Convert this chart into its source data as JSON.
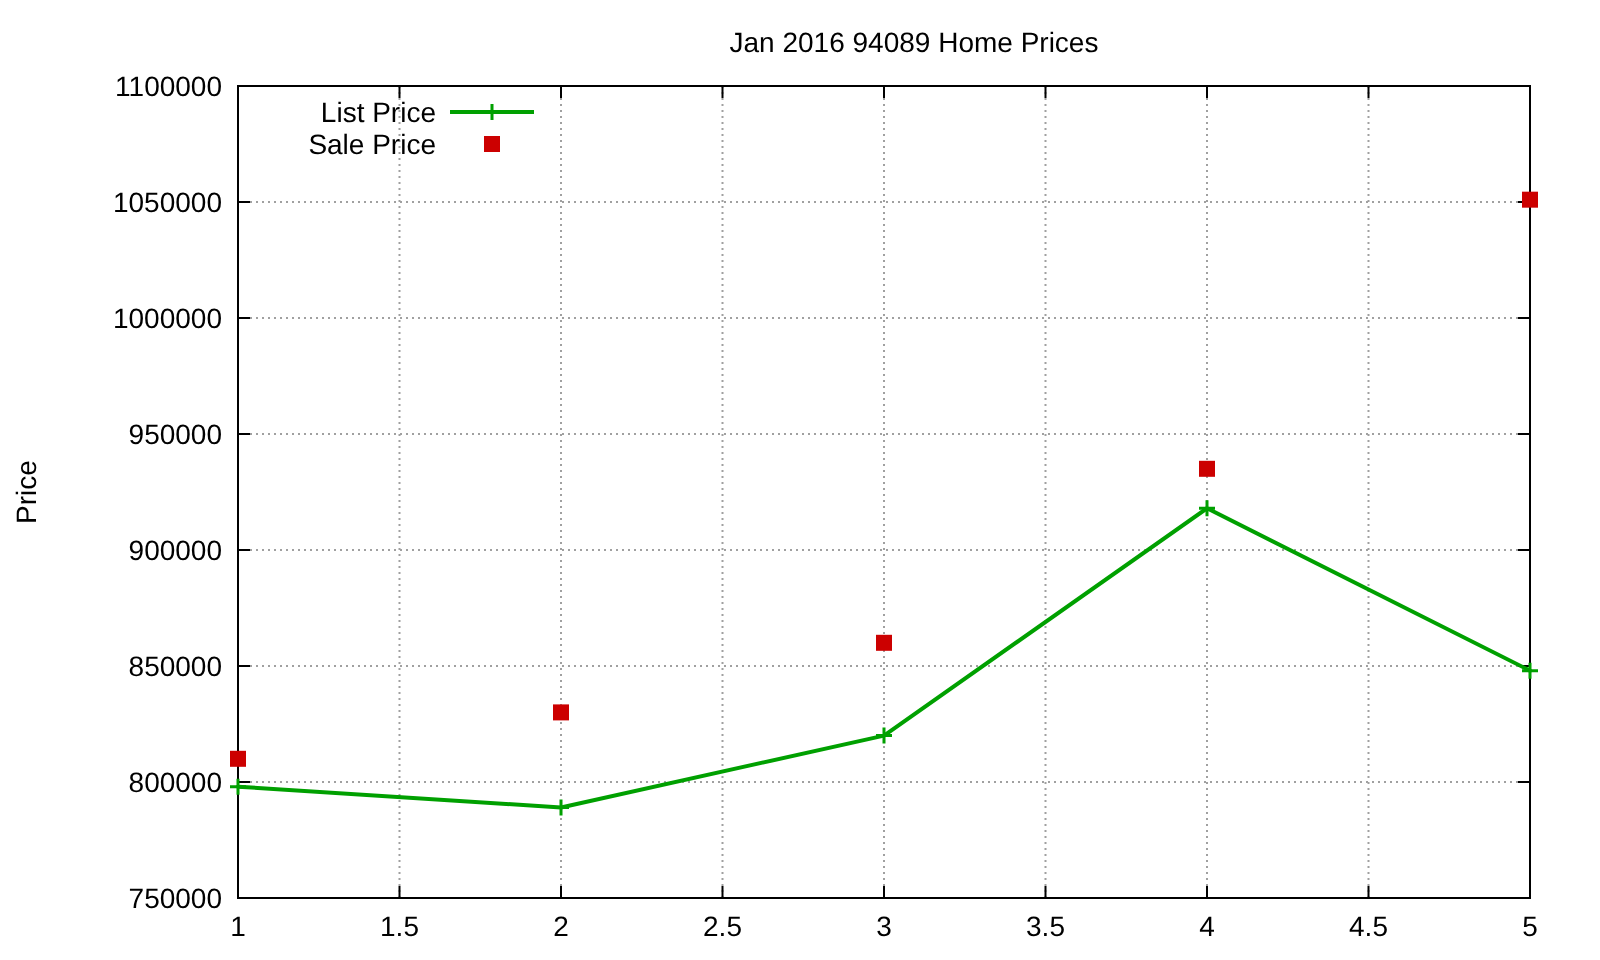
{
  "chart_data": {
    "type": "line",
    "title": "Jan 2016 94089 Home Prices",
    "ylabel": "Price",
    "x": [
      1,
      2,
      3,
      4,
      5
    ],
    "series": [
      {
        "name": "List Price",
        "color": "#00a000",
        "marker": "cross",
        "values": [
          798000,
          789000,
          820000,
          918000,
          848000
        ]
      },
      {
        "name": "Sale Price",
        "type": "scatter",
        "color": "#cc0000",
        "marker": "square",
        "values": [
          810000,
          830000,
          860000,
          935000,
          1051000
        ]
      }
    ],
    "xlim": [
      1,
      5
    ],
    "xticks": [
      1,
      1.5,
      2,
      2.5,
      3,
      3.5,
      4,
      4.5,
      5
    ],
    "ylim": [
      750000,
      1100000
    ],
    "yticks": [
      750000,
      800000,
      850000,
      900000,
      950000,
      1000000,
      1050000,
      1100000
    ],
    "grid": true,
    "legend": "top left"
  }
}
